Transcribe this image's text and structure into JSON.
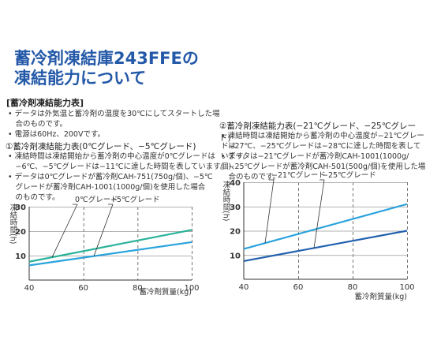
{
  "title": {
    "line1": "蓄冷剤凍結庫243FFEの",
    "line2": "凍結能力について"
  },
  "section_heading": "[蓄冷剤凍結能力表]",
  "notes": [
    "• データは外気温と蓄冷剤の温度を30℃にしてスタートした場",
    "　合のものです。",
    "• 電源は60Hz、200Vです。"
  ],
  "chart1_text": {
    "subtitle": "①蓄冷剤凍結能力表(0℃グレード、−5℃グレード)",
    "notes": [
      "• 凍結時間は凍結開始から蓄冷剤の中心温度が0℃グレードは",
      "　−6℃、−5℃グレードは−11℃に達した時間を表しています。",
      "• データは0℃グレードが蓄冷剤CAH-751(750g/個)、−5℃",
      "　グレードが蓄冷剤CAH-1001(1000g/個)を使用した場合",
      "　のものです。"
    ]
  },
  "chart2_text": {
    "subtitle": "②蓄冷剤凍結能力表(−21℃グレード、−25℃グレード)",
    "notes": [
      "• 凍結時間は凍結開始から蓄冷剤の中心温度が−21℃グレードは",
      "　−27℃、−25℃グレードは−28℃に達した時間を表しています。",
      "• データは−21℃グレードが蓄冷剤CAH-1001(1000g/個)、",
      "　−25℃グレードが蓄冷剤CAH-501(500g/個)を使用した場",
      "　合のものです。"
    ]
  },
  "chart_data": [
    {
      "type": "line",
      "xlabel": "蓄冷剤質量(kg)",
      "ylabel": "凍結時間(h)",
      "xlim": [
        40,
        100
      ],
      "ylim": [
        0,
        30
      ],
      "xticks": [
        "40",
        "60",
        "80",
        "100"
      ],
      "yticks": [
        "10",
        "20",
        "30"
      ],
      "grid": "dashed-vertical",
      "series": [
        {
          "name": "0℃グレード",
          "color": "#2bb39a",
          "x": [
            40,
            100
          ],
          "y": [
            7.5,
            20.5
          ]
        },
        {
          "name": "−5℃グレード",
          "color": "#2aa3dc",
          "x": [
            40,
            100
          ],
          "y": [
            6,
            15.5
          ]
        }
      ]
    },
    {
      "type": "line",
      "xlabel": "蓄冷剤質量(kg)",
      "ylabel": "凍結時間(h)",
      "xlim": [
        40,
        100
      ],
      "ylim": [
        0,
        40
      ],
      "xticks": [
        "40",
        "60",
        "80",
        "100"
      ],
      "yticks": [
        "10",
        "20",
        "30",
        "40"
      ],
      "grid": "dashed-vertical",
      "series": [
        {
          "name": "−21℃グレード",
          "color": "#2aa3dc",
          "x": [
            40,
            100
          ],
          "y": [
            12.5,
            31
          ]
        },
        {
          "name": "−25℃グレード",
          "color": "#2060ad",
          "x": [
            40,
            100
          ],
          "y": [
            7.5,
            20
          ]
        }
      ]
    }
  ]
}
